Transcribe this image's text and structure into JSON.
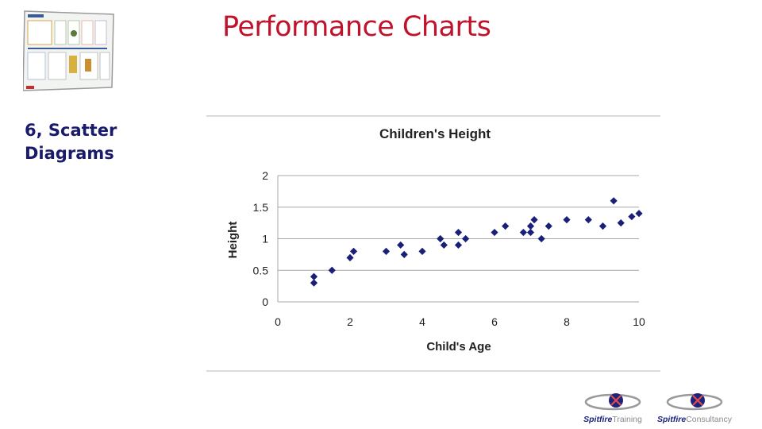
{
  "slide": {
    "title": "Performance Charts",
    "section_line1": "6, Scatter",
    "section_line2": "Diagrams"
  },
  "logos": [
    {
      "brand": "Spitfire",
      "suffix": "Training"
    },
    {
      "brand": "Spitfire",
      "suffix": "Consultancy"
    }
  ],
  "colors": {
    "title": "#c0122b",
    "label": "#1a1a6b",
    "marker": "#1a1f7a",
    "logo_brand": "#1a237e",
    "logo_suffix": "#8a8a8a"
  },
  "chart_data": {
    "type": "scatter",
    "title": "Children's Height",
    "xlabel": "Child's Age",
    "ylabel": "Height",
    "xlim": [
      0,
      10
    ],
    "ylim": [
      0,
      2
    ],
    "xticks": [
      0,
      2,
      4,
      6,
      8,
      10
    ],
    "yticks": [
      0,
      0.5,
      1,
      1.5,
      2
    ],
    "grid": "horizontal",
    "legend": "none",
    "points": [
      [
        1,
        0.4
      ],
      [
        1,
        0.3
      ],
      [
        1.5,
        0.5
      ],
      [
        2,
        0.7
      ],
      [
        2.1,
        0.8
      ],
      [
        3,
        0.8
      ],
      [
        3.4,
        0.9
      ],
      [
        3.5,
        0.75
      ],
      [
        4,
        0.8
      ],
      [
        4.5,
        1.0
      ],
      [
        4.6,
        0.9
      ],
      [
        5,
        1.1
      ],
      [
        5,
        0.9
      ],
      [
        5.2,
        1.0
      ],
      [
        6,
        1.1
      ],
      [
        6.3,
        1.2
      ],
      [
        6.8,
        1.1
      ],
      [
        7,
        1.1
      ],
      [
        7,
        1.2
      ],
      [
        7.1,
        1.3
      ],
      [
        7.3,
        1.0
      ],
      [
        7.5,
        1.2
      ],
      [
        8,
        1.3
      ],
      [
        8.6,
        1.3
      ],
      [
        9,
        1.2
      ],
      [
        9.3,
        1.6
      ],
      [
        9.5,
        1.25
      ],
      [
        9.8,
        1.35
      ],
      [
        10,
        1.4
      ]
    ]
  }
}
